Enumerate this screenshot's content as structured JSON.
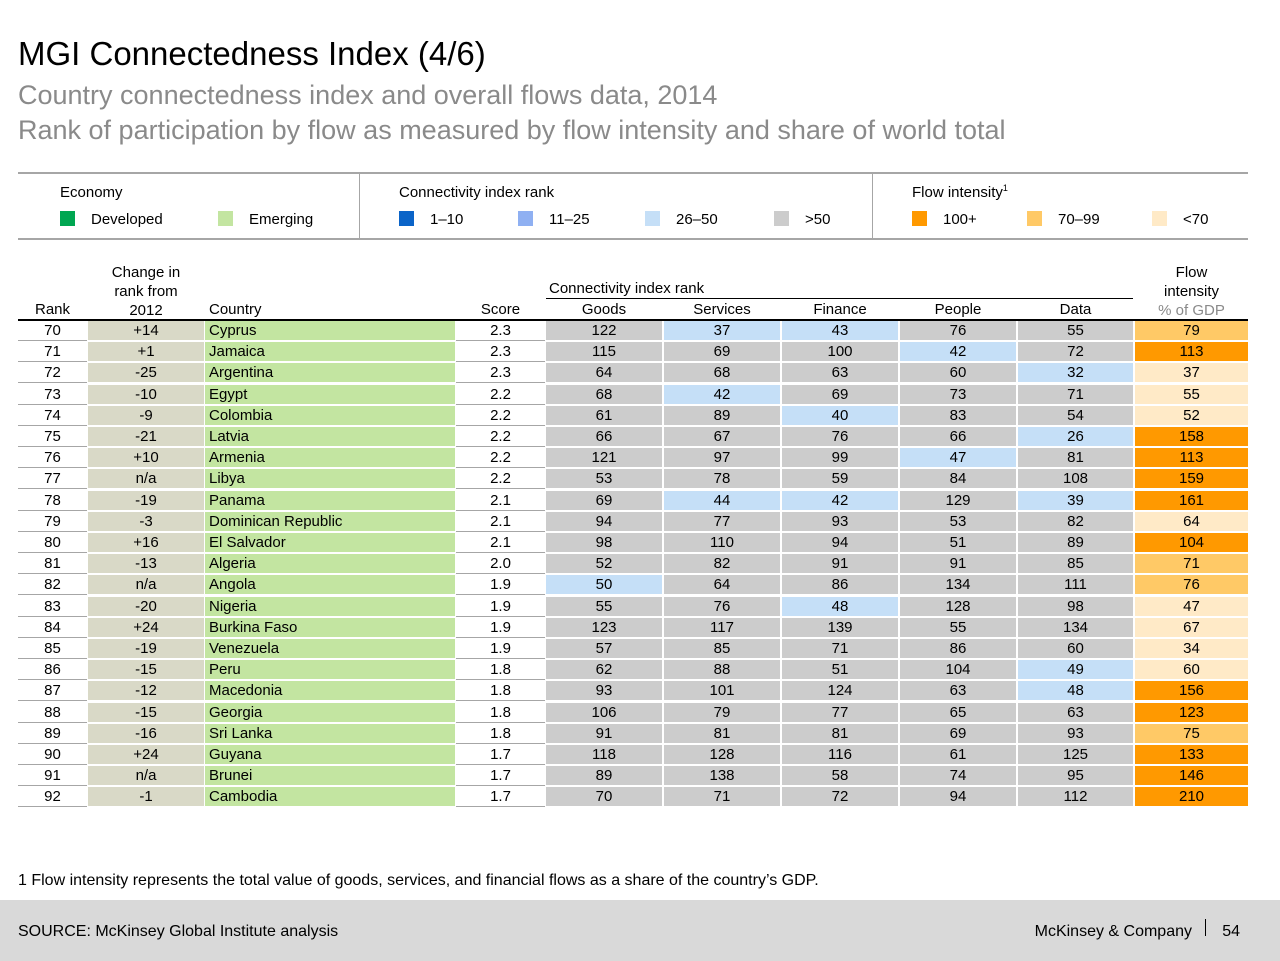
{
  "header": {
    "title": "MGI Connectedness Index (4/6)",
    "subtitle": "Country connectedness index and overall flows data, 2014",
    "subtitle2": "Rank of participation by flow as measured by flow intensity and share of world total"
  },
  "legend": {
    "economy": {
      "title": "Economy",
      "items": [
        {
          "label": "Developed",
          "color": "#00a651"
        },
        {
          "label": "Emerging",
          "color": "#c3e5a1"
        }
      ]
    },
    "rank": {
      "title": "Connectivity index rank",
      "items": [
        {
          "label": "1–10",
          "color": "#0b64c8"
        },
        {
          "label": "11–25",
          "color": "#8fb0f2"
        },
        {
          "label": "26–50",
          "color": "#c5dff7"
        },
        {
          "label": ">50",
          "color": "#cccccc"
        }
      ]
    },
    "flow": {
      "title": "Flow intensity",
      "title_sup": "1",
      "items": [
        {
          "label": "100+",
          "color": "#ff9900"
        },
        {
          "label": "70–99",
          "color": "#ffc966"
        },
        {
          "label": "<70",
          "color": "#ffeac7"
        }
      ]
    }
  },
  "columns": {
    "rank": "Rank",
    "change_line1": "Change in",
    "change_line2": "rank from",
    "change_line3": "2012",
    "country": "Country",
    "score": "Score",
    "group": "Connectivity index rank",
    "goods": "Goods",
    "services": "Services",
    "finance": "Finance",
    "people": "People",
    "data": "Data",
    "flow_line1": "Flow",
    "flow_line2": "intensity",
    "flow_line3": "% of GDP"
  },
  "colors": {
    "rank_26_50": "#c5dff7",
    "rank_over_50": "#cccccc",
    "flow_100_plus": "#ff9900",
    "flow_70_99": "#ffc966",
    "flow_under_70": "#ffeac7"
  },
  "rows": [
    {
      "rank": "70",
      "change": "+14",
      "country": "Cyprus",
      "score": "2.3",
      "goods": "122",
      "services": "37",
      "finance": "43",
      "people": "76",
      "data": "55",
      "flow": "79"
    },
    {
      "rank": "71",
      "change": "+1",
      "country": "Jamaica",
      "score": "2.3",
      "goods": "115",
      "services": "69",
      "finance": "100",
      "people": "42",
      "data": "72",
      "flow": "113"
    },
    {
      "rank": "72",
      "change": "-25",
      "country": "Argentina",
      "score": "2.3",
      "goods": "64",
      "services": "68",
      "finance": "63",
      "people": "60",
      "data": "32",
      "flow": "37"
    },
    {
      "rank": "73",
      "change": "-10",
      "country": "Egypt",
      "score": "2.2",
      "goods": "68",
      "services": "42",
      "finance": "69",
      "people": "73",
      "data": "71",
      "flow": "55"
    },
    {
      "rank": "74",
      "change": "-9",
      "country": "Colombia",
      "score": "2.2",
      "goods": "61",
      "services": "89",
      "finance": "40",
      "people": "83",
      "data": "54",
      "flow": "52"
    },
    {
      "rank": "75",
      "change": "-21",
      "country": "Latvia",
      "score": "2.2",
      "goods": "66",
      "services": "67",
      "finance": "76",
      "people": "66",
      "data": "26",
      "flow": "158"
    },
    {
      "rank": "76",
      "change": "+10",
      "country": "Armenia",
      "score": "2.2",
      "goods": "121",
      "services": "97",
      "finance": "99",
      "people": "47",
      "data": "81",
      "flow": "113"
    },
    {
      "rank": "77",
      "change": "n/a",
      "country": "Libya",
      "score": "2.2",
      "goods": "53",
      "services": "78",
      "finance": "59",
      "people": "84",
      "data": "108",
      "flow": "159"
    },
    {
      "rank": "78",
      "change": "-19",
      "country": "Panama",
      "score": "2.1",
      "goods": "69",
      "services": "44",
      "finance": "42",
      "people": "129",
      "data": "39",
      "flow": "161"
    },
    {
      "rank": "79",
      "change": "-3",
      "country": "Dominican Republic",
      "score": "2.1",
      "goods": "94",
      "services": "77",
      "finance": "93",
      "people": "53",
      "data": "82",
      "flow": "64"
    },
    {
      "rank": "80",
      "change": "+16",
      "country": "El Salvador",
      "score": "2.1",
      "goods": "98",
      "services": "110",
      "finance": "94",
      "people": "51",
      "data": "89",
      "flow": "104"
    },
    {
      "rank": "81",
      "change": "-13",
      "country": "Algeria",
      "score": "2.0",
      "goods": "52",
      "services": "82",
      "finance": "91",
      "people": "91",
      "data": "85",
      "flow": "71"
    },
    {
      "rank": "82",
      "change": "n/a",
      "country": "Angola",
      "score": "1.9",
      "goods": "50",
      "services": "64",
      "finance": "86",
      "people": "134",
      "data": "111",
      "flow": "76"
    },
    {
      "rank": "83",
      "change": "-20",
      "country": "Nigeria",
      "score": "1.9",
      "goods": "55",
      "services": "76",
      "finance": "48",
      "people": "128",
      "data": "98",
      "flow": "47"
    },
    {
      "rank": "84",
      "change": "+24",
      "country": "Burkina Faso",
      "score": "1.9",
      "goods": "123",
      "services": "117",
      "finance": "139",
      "people": "55",
      "data": "134",
      "flow": "67"
    },
    {
      "rank": "85",
      "change": "-19",
      "country": "Venezuela",
      "score": "1.9",
      "goods": "57",
      "services": "85",
      "finance": "71",
      "people": "86",
      "data": "60",
      "flow": "34"
    },
    {
      "rank": "86",
      "change": "-15",
      "country": "Peru",
      "score": "1.8",
      "goods": "62",
      "services": "88",
      "finance": "51",
      "people": "104",
      "data": "49",
      "flow": "60"
    },
    {
      "rank": "87",
      "change": "-12",
      "country": "Macedonia",
      "score": "1.8",
      "goods": "93",
      "services": "101",
      "finance": "124",
      "people": "63",
      "data": "48",
      "flow": "156"
    },
    {
      "rank": "88",
      "change": "-15",
      "country": "Georgia",
      "score": "1.8",
      "goods": "106",
      "services": "79",
      "finance": "77",
      "people": "65",
      "data": "63",
      "flow": "123"
    },
    {
      "rank": "89",
      "change": "-16",
      "country": "Sri Lanka",
      "score": "1.8",
      "goods": "91",
      "services": "81",
      "finance": "81",
      "people": "69",
      "data": "93",
      "flow": "75"
    },
    {
      "rank": "90",
      "change": "+24",
      "country": "Guyana",
      "score": "1.7",
      "goods": "118",
      "services": "128",
      "finance": "116",
      "people": "61",
      "data": "125",
      "flow": "133"
    },
    {
      "rank": "91",
      "change": "n/a",
      "country": "Brunei",
      "score": "1.7",
      "goods": "89",
      "services": "138",
      "finance": "58",
      "people": "74",
      "data": "95",
      "flow": "146"
    },
    {
      "rank": "92",
      "change": "-1",
      "country": "Cambodia",
      "score": "1.7",
      "goods": "70",
      "services": "71",
      "finance": "72",
      "people": "94",
      "data": "112",
      "flow": "210"
    }
  ],
  "footnote": "1 Flow intensity represents the total value of goods, services, and financial flows as a share of the country’s GDP.",
  "footer": {
    "source": "SOURCE: McKinsey Global Institute analysis",
    "brand": "McKinsey & Company",
    "page": "54"
  }
}
